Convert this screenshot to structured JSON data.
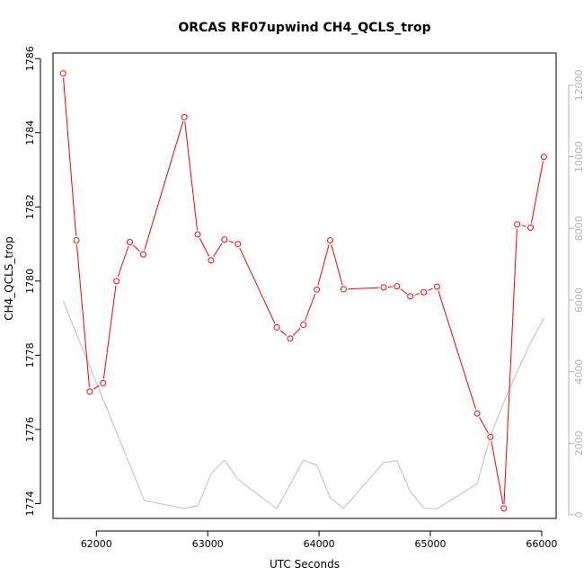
{
  "chart_data": {
    "type": "line",
    "title": "ORCAS RF07upwind CH4_QCLS_trop",
    "xlabel": "UTC Seconds",
    "ylabel": "CH4_QCLS_trop",
    "xlim": [
      61610,
      66130
    ],
    "ylim": [
      1773.6,
      1786.15
    ],
    "y2lim": [
      -100,
      12900
    ],
    "x_ticks": [
      62000,
      63000,
      64000,
      65000,
      66000
    ],
    "y_ticks": [
      1774,
      1776,
      1778,
      1780,
      1782,
      1784,
      1786
    ],
    "y2_ticks": [
      0,
      2000,
      4000,
      6000,
      8000,
      10000,
      12000
    ],
    "grid": false,
    "colors": {
      "primary": "#ff0000",
      "secondary": "#bebebe",
      "axis": "#000000",
      "secondary_axis": "#b4b4b4"
    },
    "series": [
      {
        "axis": "left",
        "marker": "circle",
        "x": [
          61700,
          61820,
          61940,
          62060,
          62180,
          62300,
          62420,
          62790,
          62910,
          63030,
          63150,
          63270,
          63620,
          63740,
          63860,
          63980,
          64100,
          64220,
          64580,
          64700,
          64820,
          64940,
          65060,
          65420,
          65540,
          65660,
          65780,
          65900,
          66020
        ],
        "values": [
          1785.6,
          1781.1,
          1777.02,
          1777.25,
          1780.0,
          1781.05,
          1780.72,
          1784.42,
          1781.26,
          1780.56,
          1781.12,
          1781.0,
          1778.75,
          1778.45,
          1778.82,
          1779.77,
          1781.1,
          1779.78,
          1779.83,
          1779.86,
          1779.59,
          1779.7,
          1779.85,
          1776.43,
          1775.8,
          1773.87,
          1781.53,
          1781.44,
          1783.35
        ]
      },
      {
        "axis": "right",
        "x": [
          61700,
          62430,
          62790,
          62910,
          63030,
          63150,
          63270,
          63620,
          63860,
          63980,
          64100,
          64220,
          64580,
          64700,
          64820,
          64940,
          65060,
          65420,
          65540,
          65660,
          65780,
          65900,
          66020
        ],
        "values": [
          5980,
          400,
          180,
          250,
          1140,
          1530,
          1000,
          170,
          1530,
          1390,
          480,
          180,
          1460,
          1510,
          650,
          190,
          170,
          870,
          2200,
          3150,
          4000,
          4800,
          5500
        ]
      }
    ]
  }
}
